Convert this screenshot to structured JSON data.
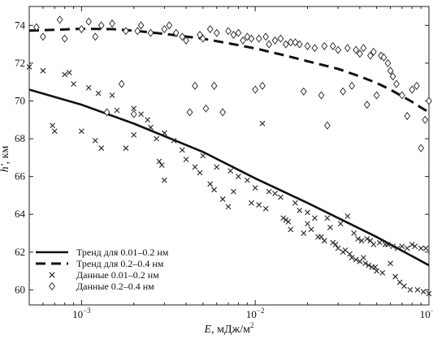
{
  "chart_data": {
    "type": "scatter",
    "xscale": "log",
    "xlim": [
      0.0005,
      0.1
    ],
    "ylim": [
      59.2,
      75.0
    ],
    "xticks": [
      {
        "value": 0.001,
        "mant": "10",
        "exp": "−3"
      },
      {
        "value": 0.01,
        "mant": "10",
        "exp": "−2"
      },
      {
        "value": 0.1,
        "mant": "10",
        "exp": "−1"
      }
    ],
    "yticks": [
      60,
      62,
      64,
      66,
      68,
      70,
      72,
      74
    ],
    "xlabel": {
      "var": "E",
      "rest": ", мДж/м",
      "sup": "2"
    },
    "ylabel": {
      "var": "h'",
      "rest": ", км"
    },
    "grid": false,
    "legend_position": "bottom-left",
    "legend": [
      {
        "label": "Тренд для 0.01–0.2 нм",
        "style": "solid"
      },
      {
        "label": "Тренд для 0.2–0.4 нм",
        "style": "dashed"
      },
      {
        "label": "Данные 0.01–0.2 нм",
        "style": "cross"
      },
      {
        "label": "Данные 0.2–0.4 нм",
        "style": "diamond"
      }
    ],
    "series": [
      {
        "style": "solid",
        "x": [
          0.0005,
          0.001,
          0.002,
          0.005,
          0.01,
          0.02,
          0.05,
          0.1
        ],
        "y": [
          70.6,
          69.8,
          68.8,
          67.3,
          65.9,
          64.6,
          62.8,
          61.3
        ]
      },
      {
        "style": "dashed",
        "x": [
          0.0005,
          0.001,
          0.0015,
          0.002,
          0.003,
          0.005,
          0.008,
          0.01,
          0.015,
          0.02,
          0.03,
          0.04,
          0.05,
          0.06,
          0.07,
          0.08,
          0.09,
          0.1
        ],
        "y": [
          73.72,
          73.82,
          73.8,
          73.72,
          73.55,
          73.3,
          72.95,
          72.78,
          72.4,
          72.1,
          71.7,
          71.3,
          70.95,
          70.6,
          70.25,
          69.95,
          69.65,
          69.4
        ]
      },
      {
        "style": "cross",
        "x": [
          0.0005,
          0.0006,
          0.00068,
          0.0007,
          0.0008,
          0.00085,
          0.0009,
          0.001,
          0.0011,
          0.0012,
          0.00125,
          0.0013,
          0.0015,
          0.0016,
          0.0018,
          0.002,
          0.002,
          0.0022,
          0.0024,
          0.0025,
          0.0027,
          0.0028,
          0.0029,
          0.003,
          0.003,
          0.0034,
          0.0038,
          0.004,
          0.0045,
          0.0048,
          0.005,
          0.0055,
          0.0058,
          0.006,
          0.0065,
          0.007,
          0.0072,
          0.0075,
          0.008,
          0.009,
          0.0095,
          0.01,
          0.0105,
          0.011,
          0.0115,
          0.012,
          0.013,
          0.014,
          0.0145,
          0.015,
          0.0155,
          0.016,
          0.017,
          0.018,
          0.019,
          0.02,
          0.02,
          0.021,
          0.022,
          0.023,
          0.024,
          0.025,
          0.026,
          0.027,
          0.028,
          0.029,
          0.03,
          0.031,
          0.032,
          0.033,
          0.034,
          0.035,
          0.036,
          0.037,
          0.038,
          0.039,
          0.04,
          0.041,
          0.042,
          0.043,
          0.044,
          0.045,
          0.046,
          0.047,
          0.048,
          0.049,
          0.05,
          0.052,
          0.054,
          0.056,
          0.058,
          0.06,
          0.062,
          0.064,
          0.066,
          0.068,
          0.07,
          0.072,
          0.075,
          0.078,
          0.08,
          0.083,
          0.086,
          0.09,
          0.093,
          0.096,
          0.1
        ],
        "y": [
          71.8,
          71.6,
          68.7,
          68.4,
          71.4,
          71.5,
          70.9,
          68.4,
          70.7,
          67.9,
          70.4,
          67.5,
          70.3,
          69.5,
          67.5,
          69.6,
          68.2,
          69.3,
          69.0,
          68.6,
          68.0,
          66.8,
          66.6,
          68.3,
          65.8,
          67.9,
          67.4,
          66.9,
          66.5,
          66.2,
          67.1,
          65.6,
          65.3,
          66.5,
          64.8,
          64.4,
          66.3,
          65.2,
          66.0,
          65.8,
          64.6,
          65.4,
          64.5,
          68.8,
          64.3,
          65.2,
          65.1,
          64.9,
          63.8,
          63.7,
          63.6,
          63.2,
          64.6,
          64.2,
          63.0,
          64.1,
          63.5,
          63.2,
          63.8,
          62.8,
          62.8,
          62.6,
          63.8,
          63.3,
          62.5,
          62.4,
          62.2,
          63.5,
          62.0,
          62.1,
          63.9,
          61.9,
          61.7,
          63.0,
          61.6,
          62.7,
          61.5,
          62.6,
          61.7,
          61.4,
          62.7,
          61.3,
          62.6,
          61.2,
          62.4,
          61.2,
          61.0,
          62.5,
          60.9,
          62.4,
          62.4,
          61.4,
          62.3,
          60.7,
          62.2,
          60.4,
          62.3,
          60.2,
          62.2,
          60.0,
          62.4,
          62.3,
          60.0,
          62.2,
          59.9,
          62.2,
          59.8
        ]
      },
      {
        "style": "diamond",
        "x": [
          0.00055,
          0.0006,
          0.00075,
          0.0008,
          0.001,
          0.0011,
          0.0012,
          0.0013,
          0.0014,
          0.0015,
          0.0017,
          0.0018,
          0.002,
          0.0021,
          0.0022,
          0.0025,
          0.003,
          0.0032,
          0.0035,
          0.0038,
          0.004,
          0.0042,
          0.0045,
          0.0048,
          0.005,
          0.0052,
          0.0055,
          0.0058,
          0.006,
          0.0065,
          0.007,
          0.0075,
          0.008,
          0.0085,
          0.009,
          0.0095,
          0.01,
          0.0105,
          0.011,
          0.0115,
          0.012,
          0.013,
          0.014,
          0.015,
          0.016,
          0.017,
          0.018,
          0.019,
          0.02,
          0.022,
          0.024,
          0.025,
          0.026,
          0.028,
          0.03,
          0.032,
          0.034,
          0.036,
          0.038,
          0.04,
          0.042,
          0.044,
          0.046,
          0.048,
          0.05,
          0.053,
          0.055,
          0.058,
          0.06,
          0.062,
          0.065,
          0.07,
          0.075,
          0.08,
          0.085,
          0.09,
          0.095,
          0.1
        ],
        "y": [
          73.9,
          73.4,
          74.3,
          73.3,
          73.8,
          74.2,
          73.4,
          74.0,
          69.4,
          74.1,
          70.9,
          73.7,
          69.3,
          73.7,
          74.0,
          73.6,
          73.8,
          74.0,
          73.6,
          73.4,
          73.2,
          69.4,
          70.8,
          73.5,
          73.3,
          69.6,
          73.8,
          70.8,
          73.6,
          69.4,
          73.7,
          73.5,
          73.6,
          73.2,
          73.4,
          73.3,
          70.6,
          73.3,
          70.8,
          73.4,
          73.0,
          73.2,
          73.3,
          73.0,
          73.1,
          73.1,
          73.0,
          70.5,
          72.9,
          72.8,
          70.3,
          72.9,
          68.7,
          72.9,
          72.7,
          70.5,
          72.8,
          70.8,
          72.7,
          72.5,
          72.8,
          69.8,
          72.4,
          72.6,
          70.3,
          72.4,
          72.3,
          72.0,
          71.6,
          71.3,
          70.9,
          70.3,
          69.2,
          70.6,
          70.8,
          67.5,
          69.0,
          70.0
        ]
      }
    ]
  }
}
